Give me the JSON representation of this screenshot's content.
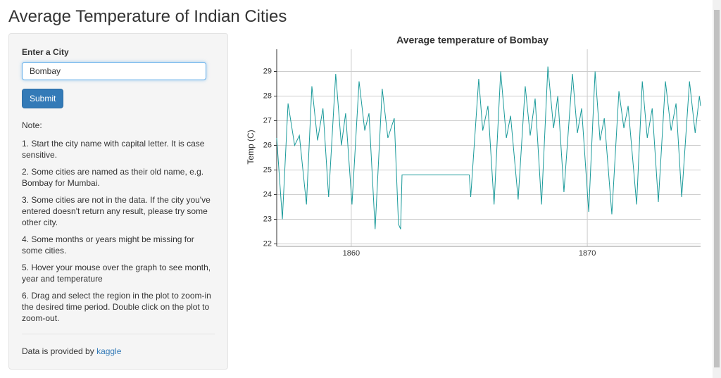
{
  "header": {
    "title": "Average Temperature of Indian Cities"
  },
  "sidebar": {
    "input_label": "Enter a City",
    "input_value": "Bombay",
    "button": "Submit",
    "note_heading": "Note:",
    "notes": [
      "1. Start the city name with capital letter. It is case sensitive.",
      "2. Some cities are named as their old name, e.g. Bombay for Mumbai.",
      "3. Some cities are not in the data. If the city you've entered doesn't return any result, please try some other city.",
      "4. Some months or years might be missing for some cities.",
      "5. Hover your mouse over the graph to see month, year and temperature",
      "6. Drag and select the region in the plot to zoom-in the desired time period. Double click on the plot to zoom-out."
    ],
    "footer_text": "Data is provided by",
    "footer_link": "kaggle"
  },
  "chart_data": {
    "type": "line",
    "title": "Average temperature of Bombay",
    "y_label": "Temp (C)",
    "color": "#1a9a9a",
    "grid": true,
    "xlim": [
      1856.84,
      1874.8
    ],
    "ylim": [
      21.9,
      29.9
    ],
    "xticks": [
      1860,
      1870
    ],
    "yticks": [
      22,
      23,
      24,
      25,
      26,
      27,
      28,
      29
    ],
    "x": [
      1856.84,
      1857.08,
      1857.32,
      1857.6,
      1857.8,
      1858.1,
      1858.33,
      1858.57,
      1858.8,
      1859.04,
      1859.34,
      1859.58,
      1859.76,
      1860.03,
      1860.33,
      1860.57,
      1860.75,
      1861.01,
      1861.31,
      1861.55,
      1861.82,
      1862.0,
      1862.09,
      1862.15,
      1865.0,
      1865.06,
      1865.4,
      1865.57,
      1865.79,
      1866.05,
      1866.33,
      1866.57,
      1866.75,
      1867.07,
      1867.37,
      1867.58,
      1867.79,
      1868.06,
      1868.33,
      1868.57,
      1868.75,
      1869.01,
      1869.37,
      1869.58,
      1869.76,
      1870.06,
      1870.33,
      1870.54,
      1870.72,
      1871.04,
      1871.34,
      1871.55,
      1871.73,
      1872.09,
      1872.33,
      1872.54,
      1872.75,
      1873.01,
      1873.31,
      1873.55,
      1873.76,
      1874.0,
      1874.33,
      1874.57,
      1874.75,
      1874.8
    ],
    "values": [
      26.3,
      23.0,
      27.7,
      26.0,
      26.4,
      23.6,
      28.4,
      26.2,
      27.5,
      23.9,
      28.9,
      26.0,
      27.3,
      23.6,
      28.6,
      26.6,
      27.3,
      22.6,
      28.3,
      26.3,
      27.1,
      22.8,
      22.6,
      24.8,
      24.8,
      23.9,
      28.7,
      26.6,
      27.6,
      23.6,
      29.0,
      26.3,
      27.2,
      23.8,
      28.4,
      26.4,
      27.9,
      23.6,
      29.2,
      26.7,
      28.0,
      24.1,
      28.9,
      26.5,
      27.5,
      23.3,
      29.0,
      26.2,
      27.1,
      23.2,
      28.2,
      26.7,
      27.6,
      23.6,
      28.6,
      26.3,
      27.5,
      23.7,
      28.6,
      26.6,
      27.7,
      23.9,
      28.6,
      26.5,
      28.0,
      27.6
    ]
  }
}
